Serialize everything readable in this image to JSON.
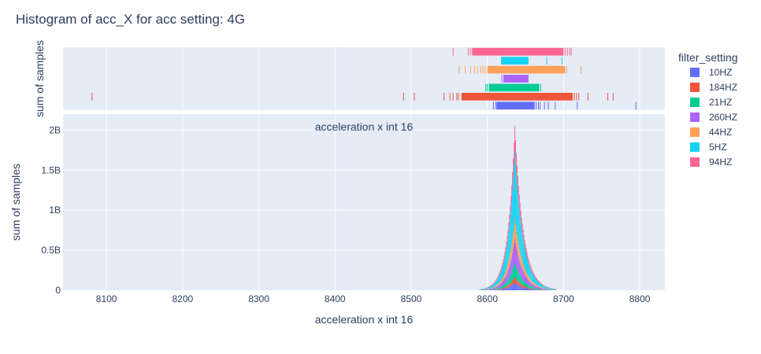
{
  "chart_data": {
    "type": "histogram",
    "title": "Histogram of acc_X for acc setting: 4G",
    "xlabel": "acceleration x int 16",
    "ylabel": "sum of samples",
    "marginal_ylabel": "sum of samples",
    "annotation": "acceleration x int 16",
    "xlim": [
      8043,
      8833
    ],
    "ylim": [
      0,
      2200000000
    ],
    "x_ticks": [
      8100,
      8200,
      8300,
      8400,
      8500,
      8600,
      8700,
      8800
    ],
    "y_ticks": [
      {
        "value": 0,
        "label": "0"
      },
      {
        "value": 500000000,
        "label": "0.5B"
      },
      {
        "value": 1000000000,
        "label": "1B"
      },
      {
        "value": 1500000000,
        "label": "1.5B"
      },
      {
        "value": 2000000000,
        "label": "2B"
      }
    ],
    "barmode": "stack",
    "distribution": {
      "center": 8636,
      "scale_left": 9,
      "scale_right": 11
    },
    "legend_title": "filter_setting",
    "legend_position": "right",
    "series": [
      {
        "name": "10HZ",
        "color": "#636efa",
        "peak": 95000000
      },
      {
        "name": "184HZ",
        "color": "#ef553b",
        "peak": 70000000
      },
      {
        "name": "21HZ",
        "color": "#00cc96",
        "peak": 180000000
      },
      {
        "name": "260HZ",
        "color": "#ab63fa",
        "peak": 300000000
      },
      {
        "name": "44HZ",
        "color": "#ffa15a",
        "peak": 250000000
      },
      {
        "name": "5HZ",
        "color": "#19d3f3",
        "peak": 850000000
      },
      {
        "name": "94HZ",
        "color": "#ff6692",
        "peak": 310000000
      }
    ],
    "marginal": {
      "type": "rug",
      "rows": [
        {
          "name": "10HZ",
          "color": "#636efa",
          "band": [
            8612,
            8662
          ],
          "ticks": [
            8608,
            8611,
            8664,
            8667,
            8669,
            8675,
            8680,
            8689,
            8718,
            8795
          ]
        },
        {
          "name": "184HZ",
          "color": "#ef553b",
          "band": [
            8566,
            8712
          ],
          "ticks": [
            8081,
            8490,
            8504,
            8543,
            8551,
            8555,
            8560,
            8562,
            8714,
            8717,
            8720,
            8732,
            8758,
            8765
          ]
        },
        {
          "name": "21HZ",
          "color": "#00cc96",
          "band": [
            8602,
            8668
          ],
          "ticks": [
            8598,
            8600,
            8670
          ]
        },
        {
          "name": "260HZ",
          "color": "#ab63fa",
          "band": [
            8621,
            8654
          ],
          "ticks": [
            8619
          ]
        },
        {
          "name": "44HZ",
          "color": "#ffa15a",
          "band": [
            8600,
            8702
          ],
          "ticks": [
            8563,
            8571,
            8578,
            8583,
            8587,
            8591,
            8594,
            8597,
            8704,
            8723
          ]
        },
        {
          "name": "5HZ",
          "color": "#19d3f3",
          "band": [
            8618,
            8654
          ],
          "ticks": [
            8678,
            8698
          ]
        },
        {
          "name": "94HZ",
          "color": "#ff6692",
          "band": [
            8580,
            8700
          ],
          "ticks": [
            8555,
            8575,
            8578,
            8702,
            8705,
            8708,
            8710
          ]
        }
      ]
    }
  }
}
